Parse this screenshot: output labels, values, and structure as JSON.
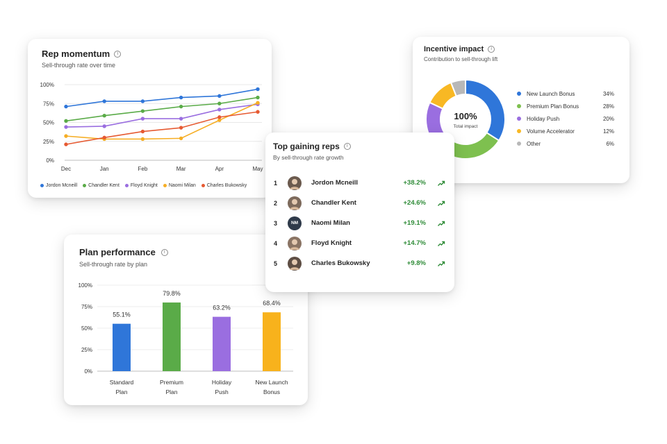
{
  "rep_momentum": {
    "title": "Rep momentum",
    "subtitle": "Sell-through rate over time"
  },
  "incentive_impact": {
    "title": "Incentive impact",
    "subtitle": "Contribution to sell-through lift",
    "center_value": "100%",
    "center_label": "Total impact"
  },
  "top_gaining": {
    "title": "Top gaining reps",
    "subtitle": "By sell-through rate growth",
    "reps": [
      {
        "rank": "1",
        "name": "Jordon Mcneill",
        "growth": "+38.2%",
        "avatar_color": "#6b5a4e",
        "initials": ""
      },
      {
        "rank": "2",
        "name": "Chandler Kent",
        "growth": "+24.6%",
        "avatar_color": "#7d6a5c",
        "initials": ""
      },
      {
        "rank": "3",
        "name": "Naomi Milan",
        "growth": "+19.1%",
        "avatar_color": "#2f3a4a",
        "initials": "NM"
      },
      {
        "rank": "4",
        "name": "Floyd Knight",
        "growth": "+14.7%",
        "avatar_color": "#8a7464",
        "initials": ""
      },
      {
        "rank": "5",
        "name": "Charles Bukowsky",
        "growth": "+9.8%",
        "avatar_color": "#5e4e44",
        "initials": ""
      }
    ],
    "trend_color": "#2e8b37"
  },
  "plan_performance": {
    "title": "Plan performance",
    "subtitle": "Sell-through rate by plan"
  },
  "chart_data": [
    {
      "id": "rep-momentum",
      "type": "line",
      "title": "Rep momentum",
      "subtitle": "Sell-through rate over time",
      "x": [
        "Dec",
        "Jan",
        "Feb",
        "Mar",
        "Apr",
        "May"
      ],
      "yticks": [
        "0%",
        "25%",
        "50%",
        "75%",
        "100%"
      ],
      "ylim": [
        0,
        100
      ],
      "grid": true,
      "legend": "bottom",
      "series": [
        {
          "name": "Jordon Mcneill",
          "color": "#2f76d9",
          "values": [
            71,
            78,
            78,
            83,
            85,
            94
          ]
        },
        {
          "name": "Chandler Kent",
          "color": "#5aab48",
          "values": [
            52,
            59,
            65,
            71,
            75,
            83
          ]
        },
        {
          "name": "Floyd Knight",
          "color": "#9a6ee0",
          "values": [
            44,
            45,
            55,
            55,
            67,
            74
          ]
        },
        {
          "name": "Naomi Milan",
          "color": "#f6ae25",
          "values": [
            32,
            28,
            28,
            29,
            53,
            76
          ]
        },
        {
          "name": "Charles Bukowsky",
          "color": "#e65a32",
          "values": [
            21,
            30,
            38,
            43,
            57,
            64
          ]
        }
      ]
    },
    {
      "id": "incentive-impact",
      "type": "pie",
      "title": "Incentive impact",
      "subtitle": "Contribution to sell-through lift",
      "legend": "right",
      "slices": [
        {
          "name": "New Launch Bonus",
          "value": 34,
          "label": "34%",
          "color": "#2f76d9"
        },
        {
          "name": "Premium Plan Bonus",
          "value": 28,
          "label": "28%",
          "color": "#7ec04f"
        },
        {
          "name": "Holiday Push",
          "value": 20,
          "label": "20%",
          "color": "#9a6ee0"
        },
        {
          "name": "Volume Accelerator",
          "value": 12,
          "label": "12%",
          "color": "#f8b824"
        },
        {
          "name": "Other",
          "value": 6,
          "label": "6%",
          "color": "#b8b8b8"
        }
      ]
    },
    {
      "id": "plan-performance",
      "type": "bar",
      "title": "Plan performance",
      "subtitle": "Sell-through rate by plan",
      "categories": [
        [
          "Standard",
          "Plan"
        ],
        [
          "Premium",
          "Plan"
        ],
        [
          "Holiday",
          "Push"
        ],
        [
          "New Launch",
          "Bonus"
        ]
      ],
      "values": [
        55.1,
        79.8,
        63.2,
        68.4
      ],
      "value_labels": [
        "55.1%",
        "79.8%",
        "63.2%",
        "68.4%"
      ],
      "colors": [
        "#2f76d9",
        "#5aab48",
        "#9a6ee0",
        "#f8b21c"
      ],
      "yticks": [
        "0%",
        "25%",
        "50%",
        "75%",
        "100%"
      ],
      "ylim": [
        0,
        100
      ],
      "grid": true
    }
  ]
}
